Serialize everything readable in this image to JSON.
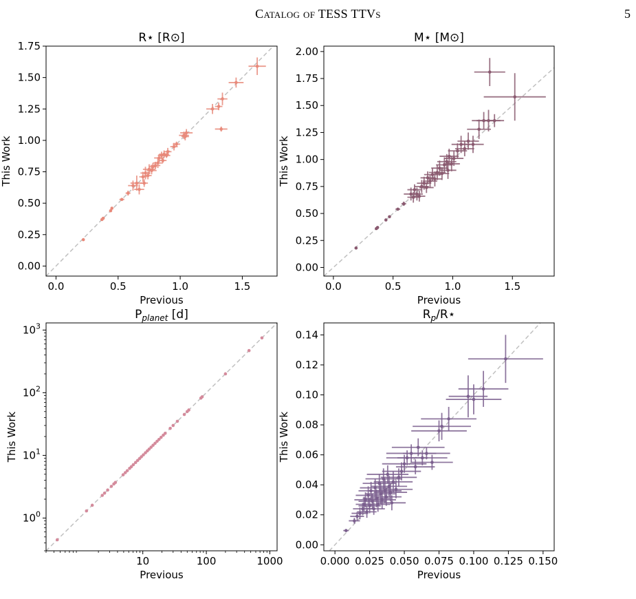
{
  "page": {
    "running_title": "Catalog of TESS TTVs",
    "page_number": "5"
  },
  "chart_data": [
    {
      "type": "scatter",
      "title": "R⋆ [R⊙]",
      "xlabel": "Previous",
      "ylabel": "This Work",
      "xlim": [
        -0.08,
        1.78
      ],
      "ylim": [
        -0.08,
        1.75
      ],
      "x_ticks": [
        "0.0",
        "0.5",
        "1.0",
        "1.5"
      ],
      "y_ticks": [
        "0.00",
        "0.25",
        "0.50",
        "0.75",
        "1.00",
        "1.25",
        "1.50",
        "1.75"
      ],
      "color": "#e8897a",
      "reference_line": "y = x, dashed gray",
      "points": [
        {
          "x": 0.22,
          "y": 0.21,
          "xerr": 0.01,
          "yerr": 0.01
        },
        {
          "x": 0.37,
          "y": 0.37,
          "xerr": 0.01,
          "yerr": 0.01
        },
        {
          "x": 0.38,
          "y": 0.38,
          "xerr": 0.01,
          "yerr": 0.01
        },
        {
          "x": 0.44,
          "y": 0.44,
          "xerr": 0.01,
          "yerr": 0.01
        },
        {
          "x": 0.45,
          "y": 0.46,
          "xerr": 0.01,
          "yerr": 0.01
        },
        {
          "x": 0.53,
          "y": 0.53,
          "xerr": 0.02,
          "yerr": 0.01
        },
        {
          "x": 0.58,
          "y": 0.58,
          "xerr": 0.02,
          "yerr": 0.02
        },
        {
          "x": 0.62,
          "y": 0.64,
          "xerr": 0.04,
          "yerr": 0.04
        },
        {
          "x": 0.65,
          "y": 0.66,
          "xerr": 0.05,
          "yerr": 0.06
        },
        {
          "x": 0.67,
          "y": 0.61,
          "xerr": 0.04,
          "yerr": 0.04
        },
        {
          "x": 0.7,
          "y": 0.71,
          "xerr": 0.03,
          "yerr": 0.04
        },
        {
          "x": 0.71,
          "y": 0.66,
          "xerr": 0.03,
          "yerr": 0.03
        },
        {
          "x": 0.72,
          "y": 0.74,
          "xerr": 0.04,
          "yerr": 0.05
        },
        {
          "x": 0.74,
          "y": 0.72,
          "xerr": 0.03,
          "yerr": 0.03
        },
        {
          "x": 0.75,
          "y": 0.77,
          "xerr": 0.05,
          "yerr": 0.04
        },
        {
          "x": 0.77,
          "y": 0.76,
          "xerr": 0.04,
          "yerr": 0.03
        },
        {
          "x": 0.78,
          "y": 0.79,
          "xerr": 0.03,
          "yerr": 0.03
        },
        {
          "x": 0.8,
          "y": 0.8,
          "xerr": 0.04,
          "yerr": 0.03
        },
        {
          "x": 0.82,
          "y": 0.82,
          "xerr": 0.04,
          "yerr": 0.04
        },
        {
          "x": 0.83,
          "y": 0.86,
          "xerr": 0.04,
          "yerr": 0.03
        },
        {
          "x": 0.85,
          "y": 0.88,
          "xerr": 0.03,
          "yerr": 0.03
        },
        {
          "x": 0.86,
          "y": 0.84,
          "xerr": 0.03,
          "yerr": 0.02
        },
        {
          "x": 0.87,
          "y": 0.89,
          "xerr": 0.04,
          "yerr": 0.03
        },
        {
          "x": 0.89,
          "y": 0.88,
          "xerr": 0.03,
          "yerr": 0.02
        },
        {
          "x": 0.9,
          "y": 0.91,
          "xerr": 0.03,
          "yerr": 0.03
        },
        {
          "x": 0.95,
          "y": 0.95,
          "xerr": 0.03,
          "yerr": 0.03
        },
        {
          "x": 0.97,
          "y": 0.97,
          "xerr": 0.03,
          "yerr": 0.02
        },
        {
          "x": 1.03,
          "y": 1.04,
          "xerr": 0.04,
          "yerr": 0.03
        },
        {
          "x": 1.04,
          "y": 1.03,
          "xerr": 0.03,
          "yerr": 0.03
        },
        {
          "x": 1.05,
          "y": 1.06,
          "xerr": 0.05,
          "yerr": 0.03
        },
        {
          "x": 1.26,
          "y": 1.25,
          "xerr": 0.05,
          "yerr": 0.04
        },
        {
          "x": 1.31,
          "y": 1.27,
          "xerr": 0.03,
          "yerr": 0.03
        },
        {
          "x": 1.33,
          "y": 1.09,
          "xerr": 0.05,
          "yerr": 0.02
        },
        {
          "x": 1.34,
          "y": 1.33,
          "xerr": 0.04,
          "yerr": 0.05
        },
        {
          "x": 1.45,
          "y": 1.46,
          "xerr": 0.06,
          "yerr": 0.04
        },
        {
          "x": 1.62,
          "y": 1.59,
          "xerr": 0.07,
          "yerr": 0.07
        }
      ]
    },
    {
      "type": "scatter",
      "title": "M⋆ [M⊙]",
      "xlabel": "Previous",
      "ylabel": "This Work",
      "xlim": [
        -0.08,
        1.85
      ],
      "ylim": [
        -0.08,
        2.05
      ],
      "x_ticks": [
        "0.0",
        "0.5",
        "1.0",
        "1.5"
      ],
      "y_ticks": [
        "0.00",
        "0.25",
        "0.50",
        "0.75",
        "1.00",
        "1.25",
        "1.50",
        "1.75",
        "2.00"
      ],
      "color": "#8a5a70",
      "reference_line": "y = x, dashed gray",
      "points": [
        {
          "x": 0.19,
          "y": 0.18,
          "xerr": 0.01,
          "yerr": 0.01
        },
        {
          "x": 0.36,
          "y": 0.36,
          "xerr": 0.01,
          "yerr": 0.01
        },
        {
          "x": 0.37,
          "y": 0.37,
          "xerr": 0.01,
          "yerr": 0.01
        },
        {
          "x": 0.44,
          "y": 0.44,
          "xerr": 0.01,
          "yerr": 0.01
        },
        {
          "x": 0.47,
          "y": 0.47,
          "xerr": 0.01,
          "yerr": 0.01
        },
        {
          "x": 0.54,
          "y": 0.54,
          "xerr": 0.02,
          "yerr": 0.01
        },
        {
          "x": 0.59,
          "y": 0.59,
          "xerr": 0.02,
          "yerr": 0.02
        },
        {
          "x": 0.65,
          "y": 0.68,
          "xerr": 0.06,
          "yerr": 0.06
        },
        {
          "x": 0.67,
          "y": 0.65,
          "xerr": 0.05,
          "yerr": 0.05
        },
        {
          "x": 0.68,
          "y": 0.72,
          "xerr": 0.06,
          "yerr": 0.05
        },
        {
          "x": 0.7,
          "y": 0.68,
          "xerr": 0.05,
          "yerr": 0.06
        },
        {
          "x": 0.72,
          "y": 0.66,
          "xerr": 0.05,
          "yerr": 0.05
        },
        {
          "x": 0.74,
          "y": 0.75,
          "xerr": 0.06,
          "yerr": 0.06
        },
        {
          "x": 0.76,
          "y": 0.78,
          "xerr": 0.06,
          "yerr": 0.06
        },
        {
          "x": 0.78,
          "y": 0.74,
          "xerr": 0.06,
          "yerr": 0.05
        },
        {
          "x": 0.79,
          "y": 0.83,
          "xerr": 0.06,
          "yerr": 0.06
        },
        {
          "x": 0.81,
          "y": 0.8,
          "xerr": 0.06,
          "yerr": 0.06
        },
        {
          "x": 0.83,
          "y": 0.86,
          "xerr": 0.07,
          "yerr": 0.06
        },
        {
          "x": 0.85,
          "y": 0.82,
          "xerr": 0.06,
          "yerr": 0.07
        },
        {
          "x": 0.87,
          "y": 0.88,
          "xerr": 0.07,
          "yerr": 0.07
        },
        {
          "x": 0.89,
          "y": 0.92,
          "xerr": 0.07,
          "yerr": 0.07
        },
        {
          "x": 0.91,
          "y": 0.87,
          "xerr": 0.06,
          "yerr": 0.06
        },
        {
          "x": 0.93,
          "y": 0.95,
          "xerr": 0.07,
          "yerr": 0.07
        },
        {
          "x": 0.95,
          "y": 0.98,
          "xerr": 0.08,
          "yerr": 0.07
        },
        {
          "x": 0.96,
          "y": 0.9,
          "xerr": 0.07,
          "yerr": 0.08
        },
        {
          "x": 0.97,
          "y": 1.03,
          "xerr": 0.08,
          "yerr": 0.07
        },
        {
          "x": 0.99,
          "y": 0.96,
          "xerr": 0.07,
          "yerr": 0.07
        },
        {
          "x": 1.01,
          "y": 1.01,
          "xerr": 0.08,
          "yerr": 0.07
        },
        {
          "x": 1.04,
          "y": 1.08,
          "xerr": 0.08,
          "yerr": 0.07
        },
        {
          "x": 1.07,
          "y": 1.14,
          "xerr": 0.08,
          "yerr": 0.08
        },
        {
          "x": 1.1,
          "y": 1.1,
          "xerr": 0.08,
          "yerr": 0.07
        },
        {
          "x": 1.13,
          "y": 1.17,
          "xerr": 0.09,
          "yerr": 0.08
        },
        {
          "x": 1.17,
          "y": 1.14,
          "xerr": 0.09,
          "yerr": 0.08
        },
        {
          "x": 1.22,
          "y": 1.28,
          "xerr": 0.1,
          "yerr": 0.09
        },
        {
          "x": 1.26,
          "y": 1.36,
          "xerr": 0.1,
          "yerr": 0.08
        },
        {
          "x": 1.3,
          "y": 1.36,
          "xerr": 0.1,
          "yerr": 0.1
        },
        {
          "x": 1.35,
          "y": 1.36,
          "xerr": 0.08,
          "yerr": 0.06
        },
        {
          "x": 1.31,
          "y": 1.81,
          "xerr": 0.13,
          "yerr": 0.13
        },
        {
          "x": 1.52,
          "y": 1.58,
          "xerr": 0.26,
          "yerr": 0.22
        }
      ]
    },
    {
      "type": "scatter",
      "title": "P_planet [d]",
      "xlabel": "Previous",
      "ylabel": "This Work",
      "xscale": "log",
      "yscale": "log",
      "xlim": [
        0.3,
        1300
      ],
      "ylim": [
        0.3,
        1300
      ],
      "x_ticks": [
        "10",
        "100",
        "1000"
      ],
      "y_ticks": [
        "10^0",
        "10^1",
        "10^2",
        "10^3"
      ],
      "color": "#d48b9c",
      "reference_line": "y = x, dashed gray",
      "points": [
        {
          "x": 0.45,
          "y": 0.45
        },
        {
          "x": 1.3,
          "y": 1.3
        },
        {
          "x": 1.6,
          "y": 1.6
        },
        {
          "x": 2.3,
          "y": 2.3
        },
        {
          "x": 2.5,
          "y": 2.5
        },
        {
          "x": 2.8,
          "y": 2.8
        },
        {
          "x": 3.2,
          "y": 3.2
        },
        {
          "x": 3.5,
          "y": 3.5
        },
        {
          "x": 3.7,
          "y": 3.7
        },
        {
          "x": 4.9,
          "y": 4.9
        },
        {
          "x": 5.3,
          "y": 5.3
        },
        {
          "x": 5.7,
          "y": 5.7
        },
        {
          "x": 6.2,
          "y": 6.2
        },
        {
          "x": 6.6,
          "y": 6.6
        },
        {
          "x": 7.1,
          "y": 7.1
        },
        {
          "x": 7.7,
          "y": 7.7
        },
        {
          "x": 8.3,
          "y": 8.3
        },
        {
          "x": 8.9,
          "y": 8.9
        },
        {
          "x": 9.5,
          "y": 9.5
        },
        {
          "x": 10.2,
          "y": 10.2
        },
        {
          "x": 11.0,
          "y": 11.0
        },
        {
          "x": 11.8,
          "y": 11.8
        },
        {
          "x": 12.6,
          "y": 12.6
        },
        {
          "x": 13.5,
          "y": 13.5
        },
        {
          "x": 14.5,
          "y": 14.5
        },
        {
          "x": 15.6,
          "y": 15.6
        },
        {
          "x": 16.8,
          "y": 16.8
        },
        {
          "x": 18.0,
          "y": 18.0
        },
        {
          "x": 19.4,
          "y": 19.4
        },
        {
          "x": 21.0,
          "y": 21.0
        },
        {
          "x": 22.5,
          "y": 22.5
        },
        {
          "x": 27.0,
          "y": 27.0
        },
        {
          "x": 30.0,
          "y": 30.0
        },
        {
          "x": 35.0,
          "y": 35.0
        },
        {
          "x": 45.0,
          "y": 45.0
        },
        {
          "x": 50.0,
          "y": 50.0
        },
        {
          "x": 53.0,
          "y": 53.0
        },
        {
          "x": 82.0,
          "y": 82.0
        },
        {
          "x": 86.0,
          "y": 86.0
        },
        {
          "x": 200.0,
          "y": 200.0
        },
        {
          "x": 470.0,
          "y": 470.0
        },
        {
          "x": 750.0,
          "y": 750.0
        }
      ]
    },
    {
      "type": "scatter",
      "title": "R_p/R⋆",
      "xlabel": "Previous",
      "ylabel": "This Work",
      "xlim": [
        -0.008,
        0.158
      ],
      "ylim": [
        -0.004,
        0.148
      ],
      "x_ticks": [
        "0.000",
        "0.025",
        "0.050",
        "0.075",
        "0.100",
        "0.125",
        "0.150"
      ],
      "y_ticks": [
        "0.00",
        "0.02",
        "0.04",
        "0.06",
        "0.08",
        "0.10",
        "0.12",
        "0.14"
      ],
      "color": "#7b5f8e",
      "reference_line": "y = x, dashed gray",
      "points": [
        {
          "x": 0.008,
          "y": 0.0095,
          "xerr": 0.002,
          "yerr": 0.0005
        },
        {
          "x": 0.014,
          "y": 0.016,
          "xerr": 0.004,
          "yerr": 0.002
        },
        {
          "x": 0.016,
          "y": 0.019,
          "xerr": 0.005,
          "yerr": 0.003
        },
        {
          "x": 0.018,
          "y": 0.021,
          "xerr": 0.006,
          "yerr": 0.004
        },
        {
          "x": 0.02,
          "y": 0.024,
          "xerr": 0.007,
          "yerr": 0.004
        },
        {
          "x": 0.021,
          "y": 0.027,
          "xerr": 0.006,
          "yerr": 0.005
        },
        {
          "x": 0.022,
          "y": 0.03,
          "xerr": 0.008,
          "yerr": 0.005
        },
        {
          "x": 0.023,
          "y": 0.022,
          "xerr": 0.007,
          "yerr": 0.004
        },
        {
          "x": 0.024,
          "y": 0.033,
          "xerr": 0.009,
          "yerr": 0.006
        },
        {
          "x": 0.025,
          "y": 0.026,
          "xerr": 0.008,
          "yerr": 0.005
        },
        {
          "x": 0.026,
          "y": 0.036,
          "xerr": 0.009,
          "yerr": 0.006
        },
        {
          "x": 0.027,
          "y": 0.029,
          "xerr": 0.01,
          "yerr": 0.005
        },
        {
          "x": 0.028,
          "y": 0.024,
          "xerr": 0.008,
          "yerr": 0.004
        },
        {
          "x": 0.029,
          "y": 0.038,
          "xerr": 0.011,
          "yerr": 0.006
        },
        {
          "x": 0.03,
          "y": 0.031,
          "xerr": 0.01,
          "yerr": 0.006
        },
        {
          "x": 0.031,
          "y": 0.027,
          "xerr": 0.009,
          "yerr": 0.005
        },
        {
          "x": 0.032,
          "y": 0.041,
          "xerr": 0.012,
          "yerr": 0.006
        },
        {
          "x": 0.033,
          "y": 0.034,
          "xerr": 0.011,
          "yerr": 0.007
        },
        {
          "x": 0.034,
          "y": 0.03,
          "xerr": 0.01,
          "yerr": 0.006
        },
        {
          "x": 0.035,
          "y": 0.044,
          "xerr": 0.013,
          "yerr": 0.007
        },
        {
          "x": 0.036,
          "y": 0.036,
          "xerr": 0.012,
          "yerr": 0.008
        },
        {
          "x": 0.037,
          "y": 0.032,
          "xerr": 0.011,
          "yerr": 0.006
        },
        {
          "x": 0.038,
          "y": 0.047,
          "xerr": 0.015,
          "yerr": 0.006
        },
        {
          "x": 0.039,
          "y": 0.039,
          "xerr": 0.013,
          "yerr": 0.007
        },
        {
          "x": 0.04,
          "y": 0.035,
          "xerr": 0.012,
          "yerr": 0.006
        },
        {
          "x": 0.041,
          "y": 0.028,
          "xerr": 0.01,
          "yerr": 0.005
        },
        {
          "x": 0.042,
          "y": 0.042,
          "xerr": 0.014,
          "yerr": 0.007
        },
        {
          "x": 0.044,
          "y": 0.037,
          "xerr": 0.012,
          "yerr": 0.006
        },
        {
          "x": 0.046,
          "y": 0.045,
          "xerr": 0.013,
          "yerr": 0.006
        },
        {
          "x": 0.048,
          "y": 0.049,
          "xerr": 0.014,
          "yerr": 0.006
        },
        {
          "x": 0.05,
          "y": 0.054,
          "xerr": 0.016,
          "yerr": 0.006
        },
        {
          "x": 0.052,
          "y": 0.058,
          "xerr": 0.015,
          "yerr": 0.005
        },
        {
          "x": 0.055,
          "y": 0.061,
          "xerr": 0.018,
          "yerr": 0.006
        },
        {
          "x": 0.058,
          "y": 0.052,
          "xerr": 0.014,
          "yerr": 0.005
        },
        {
          "x": 0.06,
          "y": 0.065,
          "xerr": 0.019,
          "yerr": 0.006
        },
        {
          "x": 0.063,
          "y": 0.058,
          "xerr": 0.018,
          "yerr": 0.005
        },
        {
          "x": 0.066,
          "y": 0.061,
          "xerr": 0.017,
          "yerr": 0.004
        },
        {
          "x": 0.07,
          "y": 0.055,
          "xerr": 0.015,
          "yerr": 0.005
        },
        {
          "x": 0.075,
          "y": 0.076,
          "xerr": 0.02,
          "yerr": 0.007
        },
        {
          "x": 0.077,
          "y": 0.079,
          "xerr": 0.021,
          "yerr": 0.009
        },
        {
          "x": 0.082,
          "y": 0.084,
          "xerr": 0.02,
          "yerr": 0.008
        },
        {
          "x": 0.096,
          "y": 0.099,
          "xerr": 0.014,
          "yerr": 0.014
        },
        {
          "x": 0.1,
          "y": 0.097,
          "xerr": 0.02,
          "yerr": 0.01
        },
        {
          "x": 0.107,
          "y": 0.104,
          "xerr": 0.018,
          "yerr": 0.012
        },
        {
          "x": 0.123,
          "y": 0.124,
          "xerr": 0.027,
          "yerr": 0.016
        }
      ]
    }
  ]
}
